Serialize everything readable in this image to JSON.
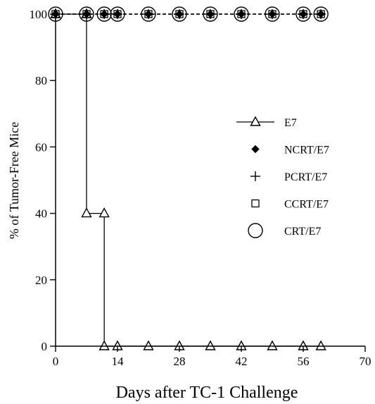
{
  "chart_data": {
    "type": "line",
    "title": "",
    "xlabel": "Days after TC-1 Challenge",
    "ylabel": "% of Tumor-Free Mice",
    "xlim": [
      0,
      70
    ],
    "ylim": [
      0,
      100
    ],
    "xticks": [
      0,
      14,
      28,
      42,
      56,
      70
    ],
    "yticks": [
      0,
      20,
      40,
      60,
      80,
      100
    ],
    "grid": false,
    "legend_position": "right",
    "step": true,
    "series": [
      {
        "name": "E7",
        "marker": "triangle-open",
        "line": "solid",
        "points": [
          [
            0,
            100
          ],
          [
            7,
            100
          ],
          [
            7,
            40
          ],
          [
            11,
            40
          ],
          [
            11,
            0
          ],
          [
            14,
            0
          ],
          [
            21,
            0
          ],
          [
            28,
            0
          ],
          [
            35,
            0
          ],
          [
            42,
            0
          ],
          [
            49,
            0
          ],
          [
            56,
            0
          ],
          [
            60,
            0
          ]
        ]
      },
      {
        "name": "NCRT/E7",
        "marker": "diamond-filled",
        "line": "dashed",
        "points": [
          [
            0,
            100
          ],
          [
            7,
            100
          ],
          [
            11,
            100
          ],
          [
            14,
            100
          ],
          [
            21,
            100
          ],
          [
            28,
            100
          ],
          [
            35,
            100
          ],
          [
            42,
            100
          ],
          [
            49,
            100
          ],
          [
            56,
            100
          ],
          [
            60,
            100
          ]
        ]
      },
      {
        "name": "PCRT/E7",
        "marker": "plus",
        "line": "dashed",
        "points": [
          [
            0,
            100
          ],
          [
            7,
            100
          ],
          [
            11,
            100
          ],
          [
            14,
            100
          ],
          [
            21,
            100
          ],
          [
            28,
            100
          ],
          [
            35,
            100
          ],
          [
            42,
            100
          ],
          [
            49,
            100
          ],
          [
            56,
            100
          ],
          [
            60,
            100
          ]
        ]
      },
      {
        "name": "CCRT/E7",
        "marker": "square-open",
        "line": "dashed",
        "points": [
          [
            0,
            100
          ],
          [
            7,
            100
          ],
          [
            11,
            100
          ],
          [
            14,
            100
          ],
          [
            21,
            100
          ],
          [
            28,
            100
          ],
          [
            35,
            100
          ],
          [
            42,
            100
          ],
          [
            49,
            100
          ],
          [
            56,
            100
          ],
          [
            60,
            100
          ]
        ]
      },
      {
        "name": "CRT/E7",
        "marker": "circle-open",
        "line": "dashed",
        "points": [
          [
            0,
            100
          ],
          [
            7,
            100
          ],
          [
            11,
            100
          ],
          [
            14,
            100
          ],
          [
            21,
            100
          ],
          [
            28,
            100
          ],
          [
            35,
            100
          ],
          [
            42,
            100
          ],
          [
            49,
            100
          ],
          [
            56,
            100
          ],
          [
            60,
            100
          ]
        ]
      }
    ]
  }
}
